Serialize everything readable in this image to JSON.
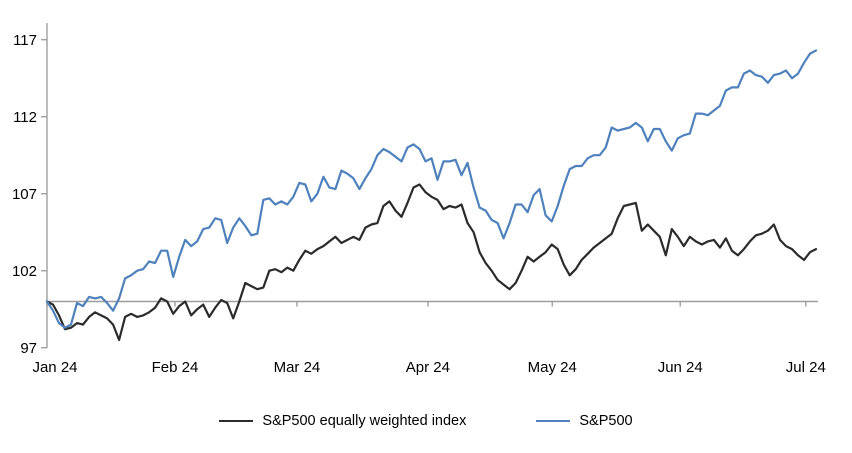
{
  "chart_data": {
    "type": "line",
    "title": "",
    "xlabel": "",
    "ylabel": "",
    "x_unit": "trading days, Jan 1 2024 - early Jul 2024, indexed to 100 at start",
    "x_axis": {
      "ticks": [
        {
          "label": "Jan 24",
          "day": 0
        },
        {
          "label": "Feb 24",
          "day": 21.3
        },
        {
          "label": "Mar 24",
          "day": 41.6
        },
        {
          "label": "Apr 24",
          "day": 63.4
        },
        {
          "label": "May 24",
          "day": 84.1
        },
        {
          "label": "Jun 24",
          "day": 105.4
        },
        {
          "label": "Jul 24",
          "day": 126.3
        }
      ]
    },
    "y_axis": {
      "ticks": [
        97,
        102,
        107,
        112,
        117
      ],
      "min": 97,
      "max": 118
    },
    "baseline": {
      "value": 100,
      "color": "#9d9d9d"
    },
    "axis_color": "#a0a0a0",
    "grid": "off",
    "legend_position": "bottom-center",
    "series": [
      {
        "name": "S&P500 equally weighted index",
        "color": "#2b2b2b",
        "values": [
          100.0,
          99.8,
          99.1,
          98.2,
          98.3,
          98.6,
          98.5,
          99.0,
          99.3,
          99.1,
          98.9,
          98.5,
          97.5,
          99.0,
          99.2,
          99.0,
          99.1,
          99.3,
          99.6,
          100.2,
          100.0,
          99.2,
          99.7,
          100.0,
          99.1,
          99.5,
          99.8,
          99.0,
          99.6,
          100.1,
          99.9,
          98.9,
          100.0,
          101.2,
          101.0,
          100.8,
          100.9,
          102.0,
          102.1,
          101.9,
          102.2,
          102.0,
          102.7,
          103.3,
          103.1,
          103.4,
          103.6,
          103.9,
          104.2,
          103.8,
          104.0,
          104.2,
          104.0,
          104.8,
          105.0,
          105.1,
          106.2,
          106.5,
          105.9,
          105.5,
          106.4,
          107.4,
          107.6,
          107.1,
          106.8,
          106.6,
          106.0,
          106.2,
          106.1,
          106.3,
          105.1,
          104.5,
          103.2,
          102.5,
          102.0,
          101.4,
          101.1,
          100.8,
          101.2,
          102.0,
          102.9,
          102.6,
          102.9,
          103.2,
          103.7,
          103.4,
          102.4,
          101.7,
          102.1,
          102.7,
          103.1,
          103.5,
          103.8,
          104.1,
          104.4,
          105.4,
          106.2,
          106.3,
          106.4,
          104.6,
          105.0,
          104.6,
          104.2,
          103.0,
          104.7,
          104.2,
          103.6,
          104.2,
          103.9,
          103.7,
          103.9,
          104.0,
          103.5,
          104.1,
          103.3,
          103.0,
          103.4,
          103.9,
          104.3,
          104.4,
          104.6,
          105.0,
          104.0,
          103.6,
          103.4,
          103.0,
          102.7,
          103.2,
          103.4
        ]
      },
      {
        "name": "S&P500",
        "color": "#4f81bd",
        "values": [
          100.0,
          99.4,
          98.6,
          98.3,
          98.5,
          99.9,
          99.7,
          100.3,
          100.2,
          100.3,
          99.9,
          99.4,
          100.2,
          101.5,
          101.7,
          102.0,
          102.1,
          102.6,
          102.5,
          103.3,
          103.3,
          101.6,
          102.9,
          104.0,
          103.6,
          103.9,
          104.7,
          104.8,
          105.4,
          105.3,
          103.8,
          104.8,
          105.4,
          104.9,
          104.3,
          104.4,
          106.6,
          106.7,
          106.3,
          106.5,
          106.3,
          106.8,
          107.7,
          107.6,
          106.5,
          107.0,
          108.1,
          107.4,
          107.3,
          108.5,
          108.3,
          108.0,
          107.3,
          108.0,
          108.6,
          109.5,
          109.9,
          109.7,
          109.4,
          109.1,
          110.0,
          110.2,
          109.9,
          109.1,
          109.3,
          107.9,
          109.1,
          109.1,
          109.2,
          108.2,
          109.0,
          107.4,
          106.1,
          105.9,
          105.3,
          105.1,
          104.1,
          105.1,
          106.3,
          106.3,
          105.8,
          106.9,
          107.3,
          105.6,
          105.2,
          106.2,
          107.5,
          108.6,
          108.8,
          108.8,
          109.3,
          109.5,
          109.5,
          110.0,
          111.3,
          111.1,
          111.2,
          111.3,
          111.6,
          111.3,
          110.4,
          111.2,
          111.2,
          110.4,
          109.8,
          110.6,
          110.8,
          110.9,
          112.2,
          112.2,
          112.1,
          112.4,
          112.7,
          113.7,
          113.9,
          113.9,
          114.8,
          115.0,
          114.7,
          114.6,
          114.2,
          114.7,
          114.8,
          115.0,
          114.5,
          114.8,
          115.5,
          116.1,
          116.3
        ]
      }
    ]
  },
  "legend": {
    "items": [
      {
        "label": "S&P500 equally weighted index"
      },
      {
        "label": "S&P500"
      }
    ]
  }
}
